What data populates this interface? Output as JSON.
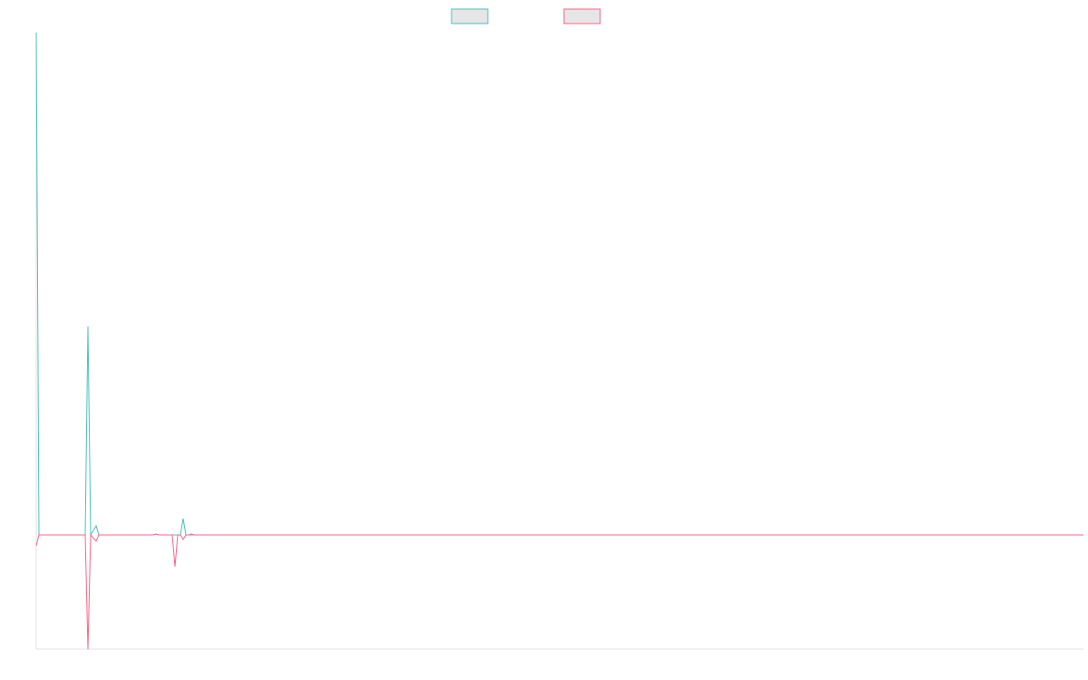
{
  "chart_data": {
    "type": "line",
    "x": [
      0,
      3,
      54,
      57,
      60,
      66,
      69,
      129,
      132,
      135,
      150,
      153,
      156,
      159,
      162,
      165,
      168,
      171,
      174,
      1155
    ],
    "series": [
      {
        "color": "#4bc0c0",
        "values": [
          554,
          0,
          0,
          230,
          0,
          10,
          0,
          0,
          1,
          0,
          0,
          0,
          0,
          0,
          18,
          0,
          0,
          0,
          0,
          0
        ]
      },
      {
        "color": "#ff6384",
        "values": [
          -12,
          0,
          0,
          -126,
          0,
          -7,
          0,
          0,
          1,
          0,
          0,
          -35,
          0,
          0,
          -5,
          0,
          0,
          1,
          0,
          0
        ]
      }
    ],
    "xlim": [
      0,
      1155
    ],
    "ylim": [
      -126,
      554
    ],
    "legend": "top"
  }
}
